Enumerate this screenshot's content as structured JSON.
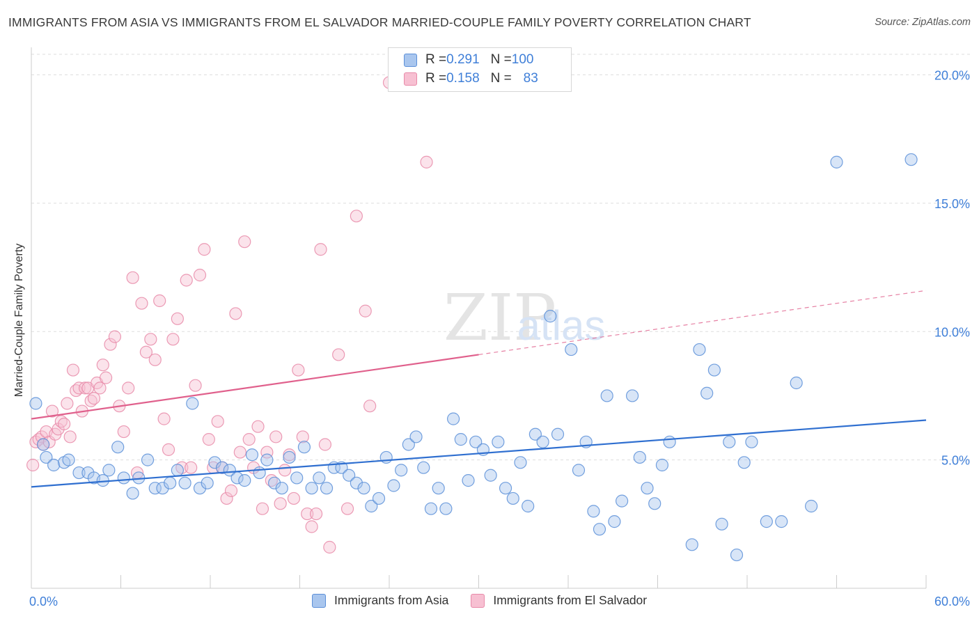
{
  "header": {
    "title": "IMMIGRANTS FROM ASIA VS IMMIGRANTS FROM EL SALVADOR MARRIED-COUPLE FAMILY POVERTY CORRELATION CHART",
    "source": "Source: ZipAtlas.com"
  },
  "legend_top": {
    "rows": [
      {
        "r_label": "R = ",
        "r_value": "0.291",
        "n_label": "N = ",
        "n_value": "100"
      },
      {
        "r_label": "R = ",
        "r_value": "0.158",
        "n_label": "N = ",
        "n_value": "83"
      }
    ]
  },
  "watermark": {
    "zip": "ZIP",
    "atlas": "atlas"
  },
  "colors": {
    "asia_fill": "#a9c6ee",
    "asia_stroke": "#5b8fd8",
    "asia_line": "#2f6fd0",
    "els_fill": "#f7c0d2",
    "els_stroke": "#e889a8",
    "els_line": "#e0608c",
    "tick_label": "#3f7fd8",
    "grid": "#dddddd"
  },
  "chart_data": {
    "type": "scatter",
    "title": "IMMIGRANTS FROM ASIA VS IMMIGRANTS FROM EL SALVADOR MARRIED-COUPLE FAMILY POVERTY CORRELATION CHART",
    "xlabel": "",
    "ylabel": "Married-Couple Family Poverty",
    "xlim": [
      0,
      60
    ],
    "ylim": [
      0,
      20.8
    ],
    "x_tick_labels": [
      "0.0%",
      "60.0%"
    ],
    "y_ticks": [
      5,
      10,
      15,
      20
    ],
    "y_tick_labels": [
      "5.0%",
      "10.0%",
      "15.0%",
      "20.0%"
    ],
    "grid": true,
    "legend_position": "bottom",
    "series": [
      {
        "name": "Immigrants from Asia",
        "R": 0.291,
        "N": 100,
        "trend": {
          "x0": 0,
          "y0": 3.95,
          "x1": 60,
          "y1": 6.55,
          "dashed_from": null
        },
        "points": [
          [
            0.3,
            7.2
          ],
          [
            0.8,
            5.6
          ],
          [
            1.0,
            5.1
          ],
          [
            1.5,
            4.8
          ],
          [
            2.2,
            4.9
          ],
          [
            2.5,
            5.0
          ],
          [
            3.2,
            4.5
          ],
          [
            3.8,
            4.5
          ],
          [
            4.2,
            4.3
          ],
          [
            4.8,
            4.2
          ],
          [
            5.2,
            4.6
          ],
          [
            5.8,
            5.5
          ],
          [
            6.2,
            4.3
          ],
          [
            6.8,
            3.7
          ],
          [
            7.2,
            4.3
          ],
          [
            7.8,
            5.0
          ],
          [
            8.3,
            3.9
          ],
          [
            8.8,
            3.9
          ],
          [
            9.3,
            4.1
          ],
          [
            9.8,
            4.6
          ],
          [
            10.3,
            4.1
          ],
          [
            10.8,
            7.2
          ],
          [
            11.3,
            3.9
          ],
          [
            11.8,
            4.1
          ],
          [
            12.3,
            4.9
          ],
          [
            12.8,
            4.7
          ],
          [
            13.3,
            4.6
          ],
          [
            13.8,
            4.3
          ],
          [
            14.3,
            4.2
          ],
          [
            14.8,
            5.2
          ],
          [
            15.3,
            4.5
          ],
          [
            15.8,
            5.0
          ],
          [
            16.3,
            4.1
          ],
          [
            16.8,
            3.9
          ],
          [
            17.3,
            5.1
          ],
          [
            17.8,
            4.3
          ],
          [
            18.3,
            5.5
          ],
          [
            18.8,
            3.9
          ],
          [
            19.3,
            4.3
          ],
          [
            19.8,
            3.9
          ],
          [
            20.3,
            4.7
          ],
          [
            20.8,
            4.7
          ],
          [
            21.3,
            4.4
          ],
          [
            21.8,
            4.1
          ],
          [
            22.3,
            3.9
          ],
          [
            22.8,
            3.2
          ],
          [
            23.3,
            3.5
          ],
          [
            23.8,
            5.1
          ],
          [
            24.3,
            4.0
          ],
          [
            24.8,
            4.6
          ],
          [
            25.3,
            5.6
          ],
          [
            25.8,
            5.9
          ],
          [
            26.3,
            4.7
          ],
          [
            26.8,
            3.1
          ],
          [
            27.3,
            3.9
          ],
          [
            27.8,
            3.1
          ],
          [
            28.3,
            6.6
          ],
          [
            28.8,
            5.8
          ],
          [
            29.3,
            4.2
          ],
          [
            29.8,
            5.7
          ],
          [
            30.3,
            5.4
          ],
          [
            30.8,
            4.4
          ],
          [
            31.3,
            5.7
          ],
          [
            31.8,
            3.9
          ],
          [
            32.3,
            3.5
          ],
          [
            32.8,
            4.9
          ],
          [
            33.3,
            3.2
          ],
          [
            33.8,
            6.0
          ],
          [
            34.3,
            5.7
          ],
          [
            34.8,
            10.6
          ],
          [
            35.3,
            6.0
          ],
          [
            36.2,
            9.3
          ],
          [
            36.7,
            4.6
          ],
          [
            37.2,
            5.7
          ],
          [
            37.7,
            3.0
          ],
          [
            38.1,
            2.3
          ],
          [
            38.6,
            7.5
          ],
          [
            39.1,
            2.6
          ],
          [
            39.6,
            3.4
          ],
          [
            40.3,
            7.5
          ],
          [
            40.8,
            5.1
          ],
          [
            41.3,
            3.9
          ],
          [
            41.8,
            3.3
          ],
          [
            42.3,
            4.8
          ],
          [
            42.8,
            5.7
          ],
          [
            44.3,
            1.7
          ],
          [
            44.8,
            9.3
          ],
          [
            45.3,
            7.6
          ],
          [
            45.8,
            8.5
          ],
          [
            46.3,
            2.5
          ],
          [
            46.8,
            5.7
          ],
          [
            47.3,
            1.3
          ],
          [
            47.8,
            4.9
          ],
          [
            48.3,
            5.7
          ],
          [
            49.3,
            2.6
          ],
          [
            50.3,
            2.6
          ],
          [
            51.3,
            8.0
          ],
          [
            52.3,
            3.2
          ],
          [
            54.0,
            16.6
          ],
          [
            59.0,
            16.7
          ]
        ]
      },
      {
        "name": "Immigrants from El Salvador",
        "R": 0.158,
        "N": 83,
        "trend": {
          "x0": 0,
          "y0": 6.6,
          "x1": 60,
          "y1": 11.6,
          "dashed_from": 30
        },
        "points": [
          [
            0.1,
            4.8
          ],
          [
            0.3,
            5.7
          ],
          [
            0.5,
            5.8
          ],
          [
            0.7,
            5.9
          ],
          [
            0.8,
            5.6
          ],
          [
            1.0,
            6.1
          ],
          [
            1.2,
            5.7
          ],
          [
            1.4,
            6.9
          ],
          [
            1.6,
            6.0
          ],
          [
            1.8,
            6.2
          ],
          [
            2.0,
            6.5
          ],
          [
            2.2,
            6.4
          ],
          [
            2.4,
            7.2
          ],
          [
            2.6,
            5.9
          ],
          [
            2.8,
            8.5
          ],
          [
            3.0,
            7.7
          ],
          [
            3.2,
            7.8
          ],
          [
            3.4,
            6.9
          ],
          [
            3.6,
            7.8
          ],
          [
            3.8,
            7.8
          ],
          [
            4.0,
            7.3
          ],
          [
            4.2,
            7.4
          ],
          [
            4.4,
            8.0
          ],
          [
            4.6,
            7.8
          ],
          [
            4.8,
            8.7
          ],
          [
            5.0,
            8.2
          ],
          [
            5.3,
            9.5
          ],
          [
            5.6,
            9.8
          ],
          [
            5.9,
            7.1
          ],
          [
            6.2,
            6.1
          ],
          [
            6.5,
            7.8
          ],
          [
            6.8,
            12.1
          ],
          [
            7.1,
            4.5
          ],
          [
            7.4,
            11.1
          ],
          [
            7.7,
            9.2
          ],
          [
            8.0,
            9.7
          ],
          [
            8.3,
            8.9
          ],
          [
            8.6,
            11.2
          ],
          [
            8.9,
            6.6
          ],
          [
            9.2,
            5.4
          ],
          [
            9.5,
            9.7
          ],
          [
            9.8,
            10.5
          ],
          [
            10.1,
            4.7
          ],
          [
            10.4,
            12.0
          ],
          [
            10.7,
            4.7
          ],
          [
            11.0,
            7.9
          ],
          [
            11.3,
            12.2
          ],
          [
            11.6,
            13.2
          ],
          [
            11.9,
            5.8
          ],
          [
            12.2,
            4.7
          ],
          [
            12.5,
            6.5
          ],
          [
            12.8,
            4.7
          ],
          [
            13.1,
            3.5
          ],
          [
            13.4,
            3.8
          ],
          [
            13.7,
            10.7
          ],
          [
            14.0,
            5.3
          ],
          [
            14.3,
            13.5
          ],
          [
            14.6,
            5.8
          ],
          [
            14.9,
            4.7
          ],
          [
            15.2,
            6.3
          ],
          [
            15.5,
            3.1
          ],
          [
            15.8,
            5.3
          ],
          [
            16.1,
            4.2
          ],
          [
            16.4,
            5.9
          ],
          [
            16.7,
            3.3
          ],
          [
            17.0,
            4.6
          ],
          [
            17.3,
            5.2
          ],
          [
            17.6,
            3.5
          ],
          [
            17.9,
            8.5
          ],
          [
            18.2,
            5.9
          ],
          [
            18.5,
            2.9
          ],
          [
            18.8,
            2.4
          ],
          [
            19.1,
            2.9
          ],
          [
            19.4,
            13.2
          ],
          [
            19.7,
            5.6
          ],
          [
            20.0,
            1.6
          ],
          [
            20.6,
            9.1
          ],
          [
            21.2,
            3.1
          ],
          [
            21.8,
            14.5
          ],
          [
            22.4,
            10.8
          ],
          [
            22.7,
            7.1
          ],
          [
            24.0,
            19.7
          ],
          [
            26.5,
            16.6
          ]
        ]
      }
    ]
  }
}
